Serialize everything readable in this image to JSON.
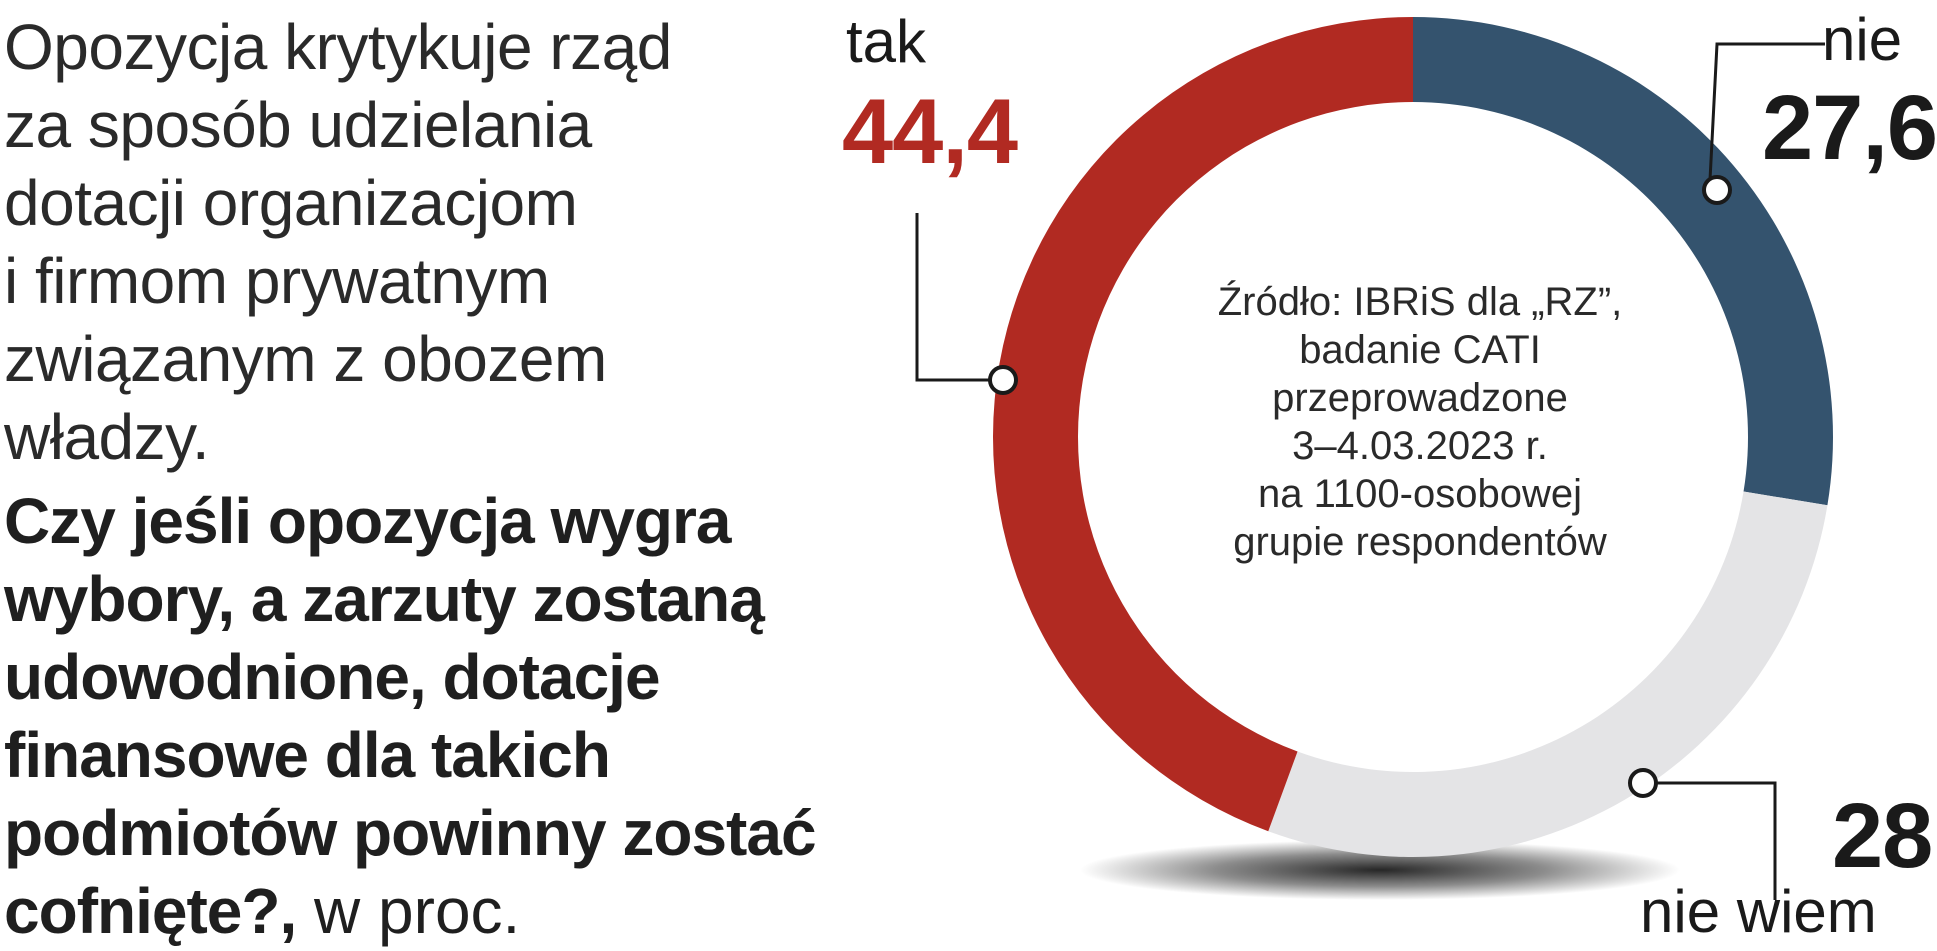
{
  "intro_text": "Opozycja krytykuje rząd\nza sposób udzielania\ndotacji organizacjom\ni firmom prywatnym\nzwiązanym z obozem\nwładzy.",
  "question_bold": "Czy jeśli opozycja wygra\nwybory, a zarzuty zostaną\nudowodnione, dotacje\nfinansowe dla takich\npodmiotów powinny zostać\ncofnięte?,",
  "question_unit": " w proc.",
  "center_note": "Źródło: IBRiS dla „RZ”,\nbadanie CATI\nprzeprowadzone\n3–4.03.2023 r.\nna 1100-osobowej\ngrupie respondentów",
  "labels": {
    "tak_name": "tak",
    "tak_value": "44,4",
    "nie_name": "nie",
    "nie_value": "27,6",
    "niewiem_name": "nie wiem",
    "niewiem_value": "28"
  },
  "colors": {
    "tak": "#b12a22",
    "nie": "#34536e",
    "nie_wiem": "#e4e4e6"
  },
  "chart_data": {
    "type": "pie",
    "style": "donut",
    "start": "top, clockwise",
    "categories": [
      "nie",
      "nie wiem",
      "tak"
    ],
    "values": [
      27.6,
      28,
      44.4
    ],
    "unit": "w proc."
  }
}
